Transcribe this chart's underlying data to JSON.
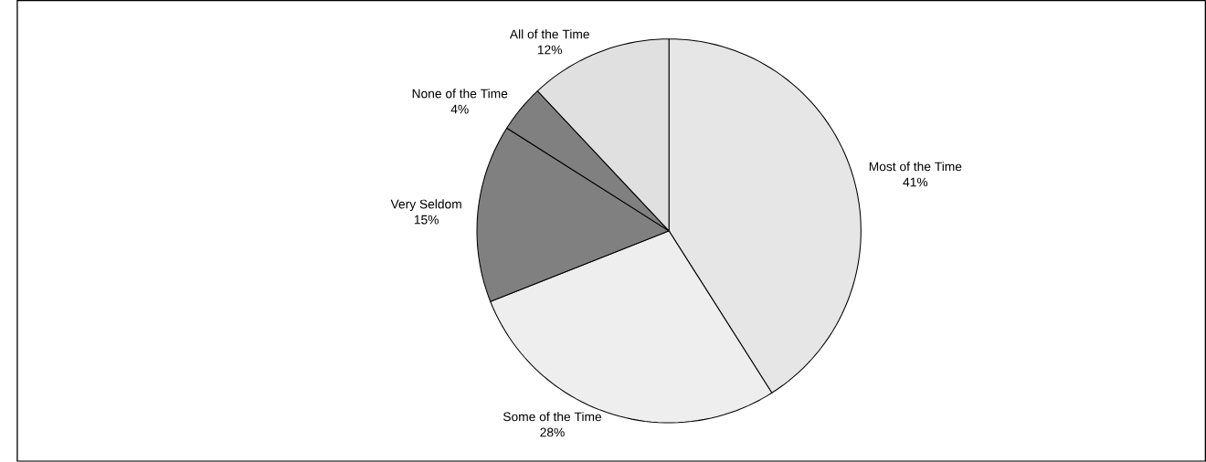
{
  "chart_data": {
    "type": "pie",
    "categories": [
      "Most of the Time",
      "Some of the Time",
      "Very Seldom",
      "None of the Time",
      "All of the Time"
    ],
    "values": [
      41,
      28,
      15,
      4,
      12
    ],
    "colors": [
      "#e6e6e6",
      "#eeeeee",
      "#808080",
      "#808080",
      "#e0e0e0"
    ],
    "value_labels": [
      "41%",
      "28%",
      "15%",
      "4%",
      "12%"
    ]
  }
}
